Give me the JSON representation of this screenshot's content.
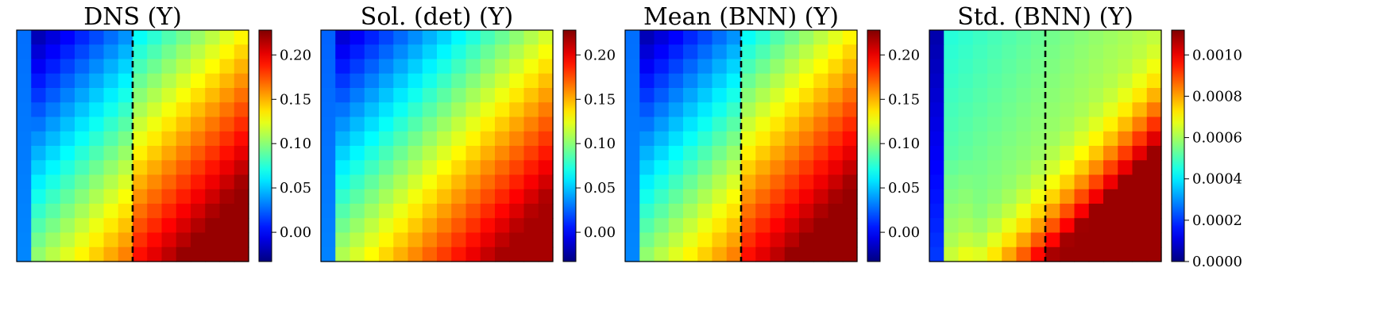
{
  "chart_data": [
    {
      "type": "heatmap",
      "title": "DNS (Y)",
      "grid_size": [
        16,
        16
      ],
      "field": "dns_split",
      "colormap": "jet",
      "dashed_vertical_line_at_column": 7.5,
      "colorbar": {
        "vmin": -0.033,
        "vmax": 0.228,
        "ticks": [
          0.0,
          0.05,
          0.1,
          0.15,
          0.2
        ],
        "tick_labels": [
          "0.00",
          "0.05",
          "0.10",
          "0.15",
          "0.20"
        ]
      },
      "approx_values": {
        "top_left_region": -0.02,
        "bottom_right_corner": 0.22,
        "left_column": 0.03
      }
    },
    {
      "type": "heatmap",
      "title": "Sol. (det) (Y)",
      "grid_size": [
        16,
        16
      ],
      "field": "smooth",
      "colormap": "jet",
      "colorbar": {
        "vmin": -0.033,
        "vmax": 0.228,
        "ticks": [
          0.0,
          0.05,
          0.1,
          0.15,
          0.2
        ],
        "tick_labels": [
          "0.00",
          "0.05",
          "0.10",
          "0.15",
          "0.20"
        ]
      },
      "approx_values": {
        "top_left_region": -0.02,
        "bottom_right_corner": 0.21,
        "left_column": 0.03
      }
    },
    {
      "type": "heatmap",
      "title": "Mean (BNN) (Y)",
      "grid_size": [
        16,
        16
      ],
      "field": "dns_split",
      "colormap": "jet",
      "dashed_vertical_line_at_column": 7.5,
      "colorbar": {
        "vmin": -0.033,
        "vmax": 0.228,
        "ticks": [
          0.0,
          0.05,
          0.1,
          0.15,
          0.2
        ],
        "tick_labels": [
          "0.00",
          "0.05",
          "0.10",
          "0.15",
          "0.20"
        ]
      },
      "approx_values": {
        "top_left_region": -0.02,
        "bottom_right_corner": 0.21,
        "left_column": 0.03
      }
    },
    {
      "type": "heatmap",
      "title": "Std. (BNN) (Y)",
      "grid_size": [
        16,
        16
      ],
      "field": "std",
      "colormap": "jet",
      "dashed_vertical_line_at_column": 7.5,
      "colorbar": {
        "vmin": 0.0,
        "vmax": 0.00112,
        "ticks": [
          0.0,
          0.0002,
          0.0004,
          0.0006,
          0.0008,
          0.001
        ],
        "tick_labels": [
          "0.0000",
          "0.0002",
          "0.0004",
          "0.0006",
          "0.0008",
          "0.0010"
        ]
      },
      "approx_values": {
        "left_column": 5e-05,
        "top_region": 0.0005,
        "bottom_right_corner": 0.0011
      }
    }
  ]
}
